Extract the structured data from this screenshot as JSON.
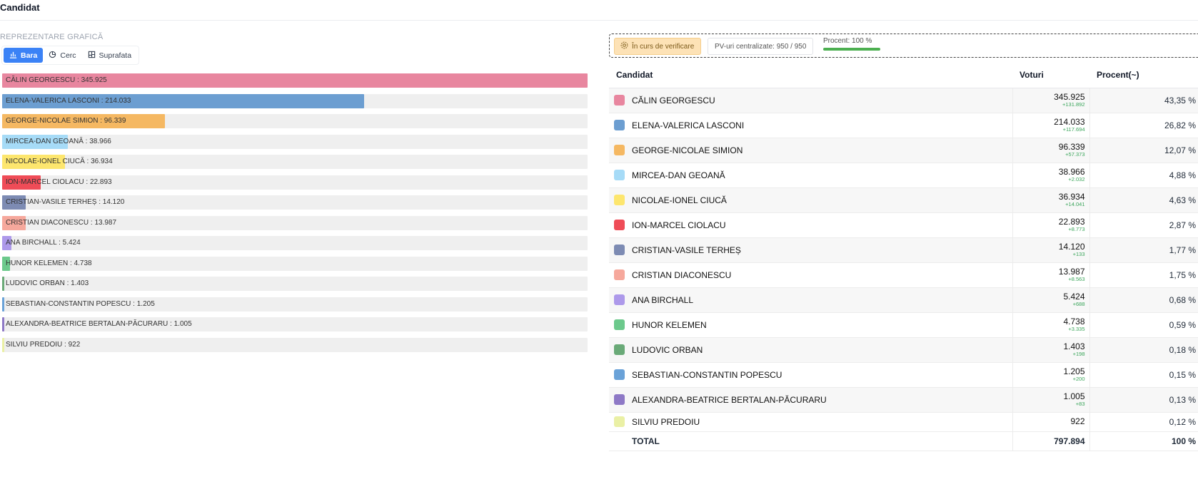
{
  "page": {
    "title": "Candidat"
  },
  "chart_section": {
    "label": "REPREZENTARE GRAFICĂ",
    "tabs": [
      {
        "label": "Bara",
        "icon": "bar-chart-icon",
        "active": true
      },
      {
        "label": "Cerc",
        "icon": "pie-chart-icon",
        "active": false
      },
      {
        "label": "Suprafata",
        "icon": "treemap-icon",
        "active": false
      }
    ]
  },
  "status": {
    "verify_label": "În curs de verificare",
    "pv_label": "PV-uri centralizate: 950 / 950",
    "procent_label": "Procent: 100 %",
    "procent_value": 100,
    "colors": {
      "verify_bg": "#fde2b6",
      "progress": "#4caf50"
    }
  },
  "table": {
    "headers": {
      "candidate": "Candidat",
      "votes": "Voturi",
      "percent": "Procent(~)"
    },
    "rows": [
      {
        "name": "CĂLIN GEORGESCU",
        "votes": "345.925",
        "delta": "+131.892",
        "pct": "43,35 %",
        "color": "#e8869f"
      },
      {
        "name": "ELENA-VALERICA LASCONI",
        "votes": "214.033",
        "delta": "+117.694",
        "pct": "26,82 %",
        "color": "#6c9ed1"
      },
      {
        "name": "GEORGE-NICOLAE SIMION",
        "votes": "96.339",
        "delta": "+57.373",
        "pct": "12,07 %",
        "color": "#f5b862"
      },
      {
        "name": "MIRCEA-DAN GEOANĂ",
        "votes": "38.966",
        "delta": "+2.032",
        "pct": "4,88 %",
        "color": "#a6dbf7"
      },
      {
        "name": "NICOLAE-IONEL CIUCĂ",
        "votes": "36.934",
        "delta": "+14.041",
        "pct": "4,63 %",
        "color": "#fde66e"
      },
      {
        "name": "ION-MARCEL CIOLACU",
        "votes": "22.893",
        "delta": "+8.773",
        "pct": "2,87 %",
        "color": "#ef4c57"
      },
      {
        "name": "CRISTIAN-VASILE TERHEȘ",
        "votes": "14.120",
        "delta": "+133",
        "pct": "1,77 %",
        "color": "#7d8bb3"
      },
      {
        "name": "CRISTIAN DIACONESCU",
        "votes": "13.987",
        "delta": "+8.563",
        "pct": "1,75 %",
        "color": "#f6a89c"
      },
      {
        "name": "ANA BIRCHALL",
        "votes": "5.424",
        "delta": "+688",
        "pct": "0,68 %",
        "color": "#ad99ea"
      },
      {
        "name": "HUNOR KELEMEN",
        "votes": "4.738",
        "delta": "+3.335",
        "pct": "0,59 %",
        "color": "#6cc98c"
      },
      {
        "name": "LUDOVIC ORBAN",
        "votes": "1.403",
        "delta": "+198",
        "pct": "0,18 %",
        "color": "#6aaa78"
      },
      {
        "name": "SEBASTIAN-CONSTANTIN POPESCU",
        "votes": "1.205",
        "delta": "+200",
        "pct": "0,15 %",
        "color": "#6aa2d8"
      },
      {
        "name": "ALEXANDRA-BEATRICE BERTALAN-PĂCURARU",
        "votes": "1.005",
        "delta": "+83",
        "pct": "0,13 %",
        "color": "#8e79c6"
      },
      {
        "name": "SILVIU PREDOIU",
        "votes": "922",
        "delta": "",
        "pct": "0,12 %",
        "color": "#eaf0a5"
      }
    ],
    "total": {
      "label": "TOTAL",
      "votes": "797.894",
      "pct": "100 %"
    }
  },
  "chart_data": {
    "type": "bar",
    "orientation": "horizontal",
    "categories": [
      "CĂLIN GEORGESCU",
      "ELENA-VALERICA LASCONI",
      "GEORGE-NICOLAE SIMION",
      "MIRCEA-DAN GEOANĂ",
      "NICOLAE-IONEL CIUCĂ",
      "ION-MARCEL CIOLACU",
      "CRISTIAN-VASILE TERHEȘ",
      "CRISTIAN DIACONESCU",
      "ANA BIRCHALL",
      "HUNOR KELEMEN",
      "LUDOVIC ORBAN",
      "SEBASTIAN-CONSTANTIN POPESCU",
      "ALEXANDRA-BEATRICE BERTALAN-PĂCURARU",
      "SILVIU PREDOIU"
    ],
    "values": [
      345925,
      214033,
      96339,
      38966,
      36934,
      22893,
      14120,
      13987,
      5424,
      4738,
      1403,
      1205,
      1005,
      922
    ],
    "labels": [
      "345.925",
      "214.033",
      "96.339",
      "38.966",
      "36.934",
      "22.893",
      "14.120",
      "13.987",
      "5.424",
      "4.738",
      "1.403",
      "1.205",
      "1.005",
      "922"
    ],
    "colors": [
      "#e8869f",
      "#6c9ed1",
      "#f5b862",
      "#a6dbf7",
      "#fde66e",
      "#ef4c57",
      "#7d8bb3",
      "#f6a89c",
      "#ad99ea",
      "#6cc98c",
      "#6aaa78",
      "#6aa2d8",
      "#8e79c6",
      "#eaf0a5"
    ],
    "xlim": [
      0,
      345925
    ]
  }
}
